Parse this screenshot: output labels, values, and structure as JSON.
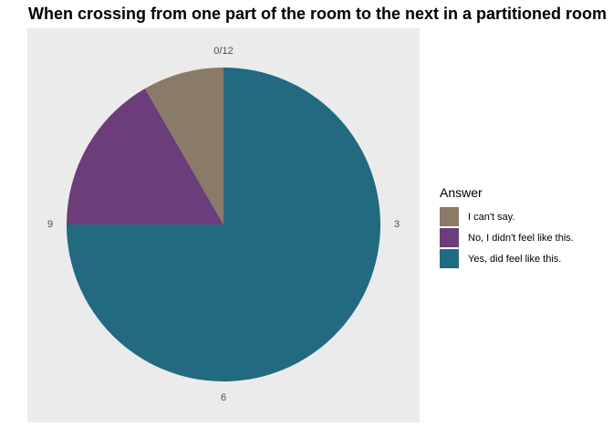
{
  "chart_data": {
    "type": "pie",
    "title": "When crossing from one part of the room to the next in a partitioned room",
    "legend_title": "Answer",
    "legend_position": "right",
    "categories": [
      "I can't say.",
      "No, I didn't feel like this.",
      "Yes, did feel like this."
    ],
    "values": [
      1,
      2,
      9
    ],
    "colors": [
      "#8a7a68",
      "#6b3d7b",
      "#226a80"
    ],
    "panel_background": "#ebebeb",
    "grid": false,
    "theta_ticks": [
      "0/12",
      "3",
      "6",
      "9"
    ],
    "theta_tick_values": [
      0,
      3,
      6,
      9
    ],
    "theta_total": 12
  }
}
